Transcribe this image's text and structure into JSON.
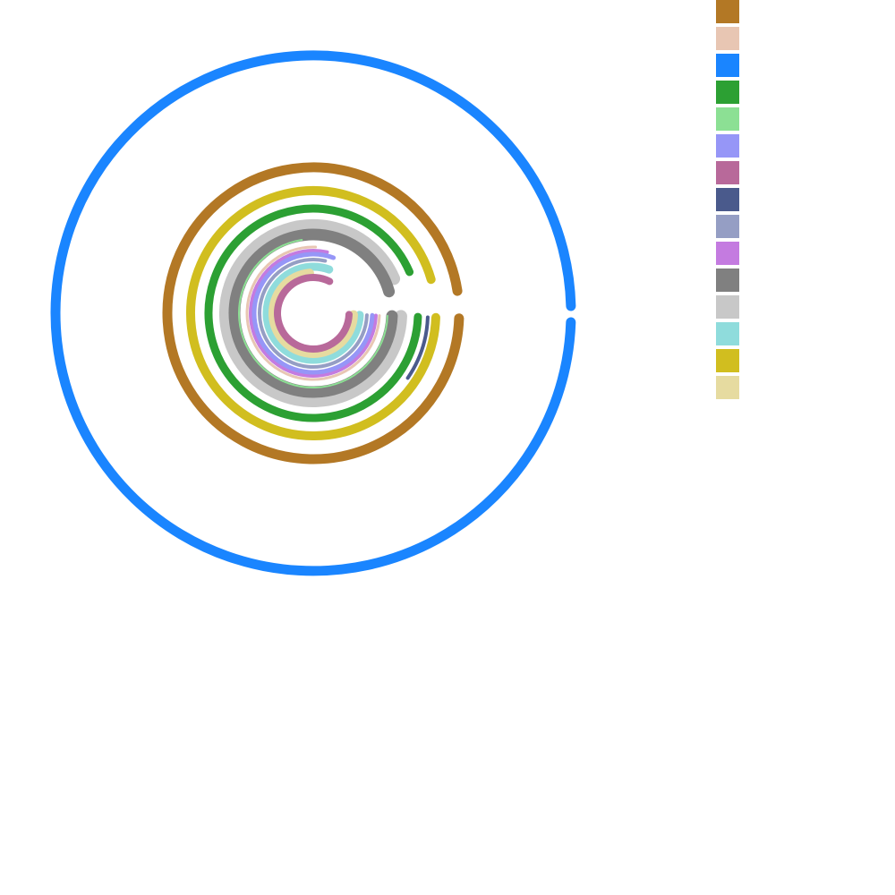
{
  "chart_data": {
    "type": "radial-bar",
    "title": "",
    "value_max": 1.0,
    "legend_position": "top-right",
    "series": [
      {
        "name": "",
        "color": "#b37825",
        "value": 0.97,
        "wedge": "outer"
      },
      {
        "name": "",
        "color": "#e8c6b3",
        "value": 0.75,
        "wedge": "inner"
      },
      {
        "name": "",
        "color": "#1a85ff",
        "value": 0.99,
        "wedge": "outer"
      },
      {
        "name": "",
        "color": "#2ca033",
        "value": 0.93,
        "wedge": "inner"
      },
      {
        "name": "",
        "color": "#8ce094",
        "value": 0.72,
        "wedge": "inner"
      },
      {
        "name": "",
        "color": "#9696f7",
        "value": 0.8,
        "wedge": "inner"
      },
      {
        "name": "",
        "color": "#b8699a",
        "value": 0.82,
        "wedge": "inner"
      },
      {
        "name": "",
        "color": "#4a5a8c",
        "value": 0.09,
        "wedge": "outer"
      },
      {
        "name": "",
        "color": "#959ec4",
        "value": 0.78,
        "wedge": "inner"
      },
      {
        "name": "",
        "color": "#c47be0",
        "value": 0.78,
        "wedge": "inner"
      },
      {
        "name": "",
        "color": "#808080",
        "value": 0.95,
        "wedge": "inner"
      },
      {
        "name": "",
        "color": "#c8c8c8",
        "value": 0.93,
        "wedge": "inner"
      },
      {
        "name": "",
        "color": "#8fdcdc",
        "value": 0.8,
        "wedge": "inner"
      },
      {
        "name": "",
        "color": "#d1be1f",
        "value": 0.95,
        "wedge": "inner"
      },
      {
        "name": "",
        "color": "#e6dba0",
        "value": 0.73,
        "wedge": "inner"
      }
    ]
  }
}
